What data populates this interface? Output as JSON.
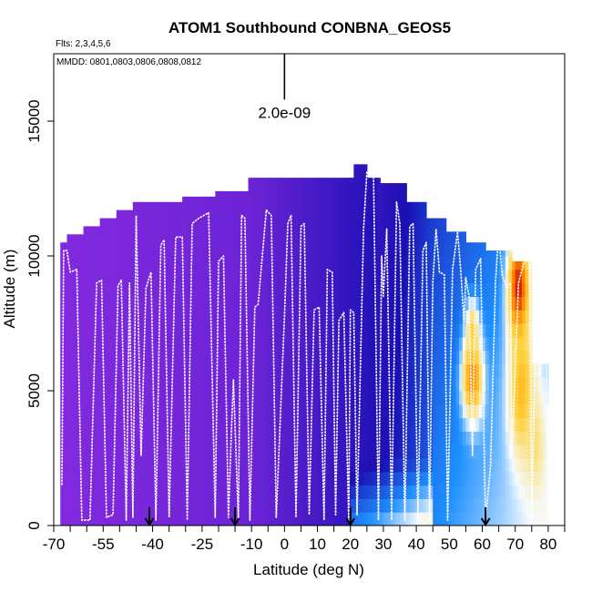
{
  "chart_data": {
    "type": "heatmap",
    "title": "ATOM1 Southbound CONBNA_GEOS5",
    "flights_label": "Flts: 2,3,4,5,6",
    "dates_label": "MMDD: 0801,0803,0806,0808,0812",
    "xlabel": "Latitude (deg N)",
    "ylabel": "Altitude (m)",
    "xlim": [
      -70,
      85
    ],
    "ylim": [
      0,
      17500
    ],
    "xticks": [
      -70,
      -55,
      -40,
      -25,
      -10,
      0,
      10,
      20,
      30,
      40,
      50,
      60,
      70,
      80
    ],
    "xtick_labels": [
      "-70",
      "-55",
      "-40",
      "-25",
      "-10",
      "0",
      "10",
      "20",
      "30",
      "40",
      "50",
      "60",
      "70",
      "80"
    ],
    "xtick_minor": [
      -65,
      -60,
      -50,
      -45,
      -35,
      -30,
      -20,
      -15,
      -5,
      5,
      15,
      25,
      35,
      45,
      55,
      65,
      75,
      85
    ],
    "yticks": [
      0,
      5000,
      10000,
      15000
    ],
    "ytick_labels": [
      "0",
      "5000",
      "10000",
      "15000"
    ],
    "scale_bar": {
      "x": 0,
      "y_bottom": 15800,
      "y_top": 17500,
      "label": "2.0e-09"
    },
    "arrows_lat": [
      -41,
      -15,
      20,
      61
    ],
    "colors": {
      "low": "#8a2be2",
      "mid": "#1a0fb4",
      "light": "#f5fbff",
      "high": "#ff8800",
      "peak": "#cc0000",
      "track": "#ffffff"
    },
    "column_tops": [
      {
        "lat": -66,
        "top": 10500
      },
      {
        "lat": -61,
        "top": 10800
      },
      {
        "lat": -56,
        "top": 11100
      },
      {
        "lat": -51,
        "top": 11400
      },
      {
        "lat": -46,
        "top": 11700
      },
      {
        "lat": -41,
        "top": 12000
      },
      {
        "lat": -31,
        "top": 12000
      },
      {
        "lat": -21,
        "top": 12200
      },
      {
        "lat": -11,
        "top": 12400
      },
      {
        "lat": 1,
        "top": 12900
      },
      {
        "lat": 21,
        "top": 12900
      },
      {
        "lat": 25,
        "top": 13400
      },
      {
        "lat": 29,
        "top": 12900
      },
      {
        "lat": 37,
        "top": 12700
      },
      {
        "lat": 43,
        "top": 12000
      },
      {
        "lat": 49,
        "top": 11400
      },
      {
        "lat": 55,
        "top": 10900
      },
      {
        "lat": 61,
        "top": 10500
      },
      {
        "lat": 69,
        "top": 10200
      },
      {
        "lat": 75,
        "top": 9800
      },
      {
        "lat": 80,
        "top": 6000
      }
    ],
    "hotspots": [
      {
        "lat": 57,
        "alt": 5500,
        "lat_w": 3,
        "alt_h": 1500,
        "value": 0.85
      },
      {
        "lat": 57,
        "alt": 7300,
        "lat_w": 2,
        "alt_h": 1000,
        "value": 0.7
      },
      {
        "lat": 71,
        "alt": 8800,
        "lat_w": 3,
        "alt_h": 1900,
        "value": 1.0
      },
      {
        "lat": 72,
        "alt": 5000,
        "lat_w": 4,
        "alt_h": 2500,
        "value": 0.75
      },
      {
        "lat": 76,
        "alt": 3000,
        "lat_w": 3,
        "alt_h": 1800,
        "value": 0.65
      }
    ],
    "flight_track": [
      [
        -67.5,
        1500
      ],
      [
        -67,
        10200
      ],
      [
        -66,
        10200
      ],
      [
        -65,
        9400
      ],
      [
        -63,
        9500
      ],
      [
        -61.5,
        200
      ],
      [
        -59,
        200
      ],
      [
        -57,
        9000
      ],
      [
        -55.5,
        9100
      ],
      [
        -54,
        300
      ],
      [
        -52,
        400
      ],
      [
        -50.5,
        8900
      ],
      [
        -49.5,
        9100
      ],
      [
        -48,
        200
      ],
      [
        -47,
        9000
      ],
      [
        -46,
        300
      ],
      [
        -45,
        11500
      ],
      [
        -43.5,
        2600
      ],
      [
        -42,
        8800
      ],
      [
        -40.5,
        9400
      ],
      [
        -39,
        200
      ],
      [
        -37.5,
        10400
      ],
      [
        -36.5,
        10600
      ],
      [
        -35,
        300
      ],
      [
        -33,
        10700
      ],
      [
        -31,
        10700
      ],
      [
        -29.5,
        200
      ],
      [
        -28,
        11200
      ],
      [
        -26,
        11400
      ],
      [
        -23,
        11600
      ],
      [
        -21,
        300
      ],
      [
        -20,
        9800
      ],
      [
        -18.5,
        10000
      ],
      [
        -17,
        300
      ],
      [
        -16,
        3800
      ],
      [
        -15.5,
        5400
      ],
      [
        -14,
        200
      ],
      [
        -13,
        11500
      ],
      [
        -12,
        11400
      ],
      [
        -10.5,
        200
      ],
      [
        -9,
        8100
      ],
      [
        -8,
        8200
      ],
      [
        -5.5,
        11700
      ],
      [
        -4,
        11500
      ],
      [
        -2.5,
        300
      ],
      [
        0,
        7800
      ],
      [
        1,
        11200
      ],
      [
        2,
        11500
      ],
      [
        3.5,
        300
      ],
      [
        5,
        11100
      ],
      [
        6,
        11200
      ],
      [
        7.5,
        400
      ],
      [
        9,
        8000
      ],
      [
        10.5,
        8100
      ],
      [
        12,
        200
      ],
      [
        13,
        9500
      ],
      [
        14.5,
        9400
      ],
      [
        15.5,
        400
      ],
      [
        16.5,
        7600
      ],
      [
        18,
        7900
      ],
      [
        19.5,
        200
      ],
      [
        20,
        8000
      ],
      [
        21,
        7900
      ],
      [
        22,
        400
      ],
      [
        24,
        11000
      ],
      [
        25,
        13100
      ],
      [
        27,
        13100
      ],
      [
        28.5,
        200
      ],
      [
        29.5,
        10000
      ],
      [
        30,
        8500
      ],
      [
        31,
        11000
      ],
      [
        32.5,
        200
      ],
      [
        34,
        12000
      ],
      [
        35,
        11200
      ],
      [
        36.5,
        200
      ],
      [
        38,
        11100
      ],
      [
        39,
        11200
      ],
      [
        40.5,
        200
      ],
      [
        42,
        10200
      ],
      [
        43,
        10500
      ],
      [
        44,
        200
      ],
      [
        45,
        9000
      ],
      [
        46,
        11000
      ],
      [
        47,
        9400
      ],
      [
        48.5,
        9300
      ],
      [
        49.5,
        200
      ],
      [
        51,
        9500
      ],
      [
        52.5,
        10900
      ],
      [
        53.5,
        9400
      ],
      [
        54.5,
        7500
      ],
      [
        55,
        9200
      ],
      [
        56,
        8500
      ],
      [
        57,
        2600
      ],
      [
        58,
        9500
      ],
      [
        59.5,
        9900
      ],
      [
        61,
        200
      ],
      [
        62.5,
        2200
      ],
      [
        64,
        9000
      ],
      [
        65,
        10900
      ],
      [
        66,
        9300
      ],
      [
        67.5,
        8800
      ],
      [
        68.5,
        9000
      ],
      [
        69,
        2600
      ],
      [
        71,
        9000
      ],
      [
        72.5,
        9700
      ],
      [
        74.5,
        10000
      ],
      [
        75,
        200
      ],
      [
        76.5,
        9500
      ],
      [
        78,
        10000
      ],
      [
        79.5,
        5800
      ],
      [
        80,
        200
      ]
    ]
  }
}
